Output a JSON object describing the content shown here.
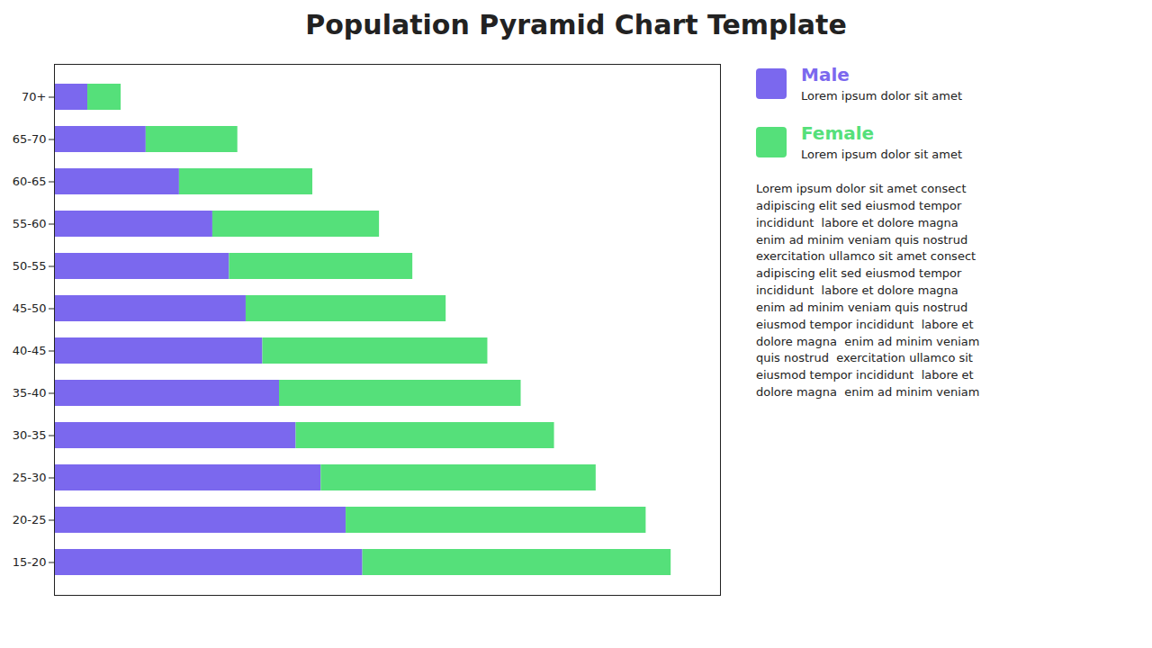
{
  "chart_data": {
    "type": "bar",
    "title": "Population Pyramid Chart Template",
    "orientation": "horizontal",
    "stacked": true,
    "grid": false,
    "legend": "right",
    "tick_labels": "y",
    "categories": [
      "15-20",
      "20-25",
      "25-30",
      "30-35",
      "35-40",
      "40-45",
      "45-50",
      "50-55",
      "55-60",
      "60-65",
      "65-70",
      "70+"
    ],
    "series": [
      {
        "name": "Male",
        "color": "#7b68ee",
        "values": [
          37,
          35,
          32,
          29,
          27,
          25,
          23,
          21,
          19,
          15,
          11,
          4
        ]
      },
      {
        "name": "Female",
        "color": "#55e07a",
        "values": [
          37,
          36,
          33,
          31,
          29,
          27,
          24,
          22,
          20,
          16,
          11,
          4
        ]
      }
    ],
    "xlim": [
      0,
      79.92
    ],
    "annotations": [
      "Lorem ipsum dolor sit amet",
      "Lorem ipsum dolor sit amet",
      "Lorem ipsum dolor sit amet consect\nadipiscing elit sed eiusmod tempor\nincididunt  labore et dolore magna\nenim ad minim veniam quis nostrud\nexercitation ullamco sit amet consect\nadipiscing elit sed eiusmod tempor\nincididunt  labore et dolore magna\nenim ad minim veniam quis nostrud\neiusmod tempor incididunt  labore et\ndolore magna  enim ad minim veniam\nquis nostrud  exercitation ullamco sit\neiusmod tempor incididunt  labore et\ndolore magna  enim ad minim veniam"
    ]
  }
}
